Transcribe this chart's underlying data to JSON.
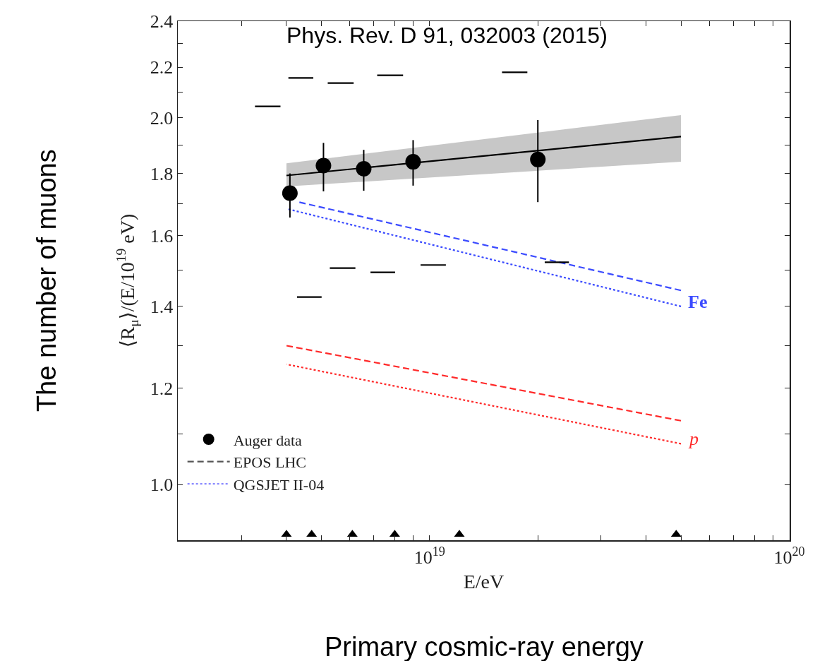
{
  "chart_data": {
    "type": "line",
    "xlabel": "E/eV",
    "ylabel": "⟨R$_{μ}$⟩/(E/10$^{19}$ eV)",
    "annotations": [
      "Phys. Rev. D 91, 032003 (2015)",
      "The number of muons",
      "Primary cosmic-ray energy",
      "Fe",
      "p"
    ],
    "log": "xy",
    "legend": "bottom left",
    "xlim": [
      2e+18,
      1e+20
    ],
    "xticks": [
      {
        "value": 3e+18,
        "label": null
      },
      {
        "value": 4e+18,
        "label": null
      },
      {
        "value": 5e+18,
        "label": null
      },
      {
        "value": 6e+18,
        "label": null
      },
      {
        "value": 7e+18,
        "label": null
      },
      {
        "value": 8e+18,
        "label": null
      },
      {
        "value": 9e+18,
        "label": null
      },
      {
        "value": 1e+19,
        "label": "10$^{19}$"
      },
      {
        "value": 2e+19,
        "label": null
      },
      {
        "value": 3e+19,
        "label": null
      },
      {
        "value": 4e+19,
        "label": null
      },
      {
        "value": 5e+19,
        "label": null
      },
      {
        "value": 6e+19,
        "label": null
      },
      {
        "value": 7e+19,
        "label": null
      },
      {
        "value": 8e+19,
        "label": null
      },
      {
        "value": 9e+19,
        "label": null
      },
      {
        "value": 1e+20,
        "label": "10$^{20}$"
      }
    ],
    "ylim": [
      0.9,
      2.4
    ],
    "yticks": [
      {
        "value": 1,
        "label": "1.0"
      },
      {
        "value": 1.1,
        "label": null
      },
      {
        "value": 1.2,
        "label": "1.2"
      },
      {
        "value": 1.3,
        "label": null
      },
      {
        "value": 1.4,
        "label": "1.4"
      },
      {
        "value": 1.5,
        "label": null
      },
      {
        "value": 1.6,
        "label": "1.6"
      },
      {
        "value": 1.7,
        "label": null
      },
      {
        "value": 1.8,
        "label": "1.8"
      },
      {
        "value": 1.9,
        "label": null
      },
      {
        "value": 2,
        "label": "2.0"
      },
      {
        "value": 2.1,
        "label": null
      },
      {
        "value": 2.2,
        "label": "2.2"
      },
      {
        "value": 2.3,
        "label": null
      },
      {
        "value": 2.4,
        "label": "2.4"
      }
    ],
    "series": [
      {
        "color": "#000000",
        "x": [
          4e+18,
          5e+19
        ],
        "values": [
          1.793,
          1.93
        ],
        "lower": [
          1.756,
          1.84
        ],
        "upper": [
          1.835,
          2.01
        ]
      },
      {
        "color": "#3b4bff",
        "line_style": "dashed",
        "x": [
          4.3e+18,
          5e+19
        ],
        "values": [
          1.706,
          1.443
        ]
      },
      {
        "color": "#3b4bff",
        "line_style": "dotted",
        "x": [
          4e+18,
          5e+19
        ],
        "values": [
          1.684,
          1.4
        ]
      },
      {
        "color": "#ff2a2a",
        "line_style": "dashed",
        "x": [
          4e+18,
          5e+19
        ],
        "values": [
          1.3,
          1.128
        ]
      },
      {
        "color": "#ff2a2a",
        "line_style": "dotted",
        "x": [
          4e+18,
          5e+19
        ],
        "values": [
          1.255,
          1.08
        ]
      },
      {
        "color": "#000000",
        "x": [
          3.27e+18,
          3.85e+18,
          null,
          4.05e+18,
          4.75e+18,
          null,
          5.21e+18,
          6.15e+18,
          null,
          7.15e+18,
          8.44e+18,
          null,
          1.59e+19,
          1.87e+19,
          null,
          4.28e+18,
          5.01e+18,
          null,
          5.28e+18,
          6.22e+18,
          null,
          6.85e+18,
          8.02e+18,
          null,
          9.44e+18,
          1.11e+19,
          null,
          2.09e+19,
          2.44e+19
        ],
        "values": [
          2.043,
          2.043,
          null,
          2.156,
          2.156,
          null,
          2.135,
          2.135,
          null,
          2.167,
          2.167,
          null,
          2.179,
          2.179,
          null,
          1.425,
          1.425,
          null,
          1.505,
          1.505,
          null,
          1.493,
          1.493,
          null,
          1.514,
          1.514,
          null,
          1.522,
          1.522
        ]
      },
      {
        "type": "scatter",
        "color": "#000000",
        "marker": "triangle",
        "x": [
          4e+18,
          4.7e+18,
          6.1e+18,
          8e+18,
          1.21e+19,
          4.85e+19
        ],
        "values": [
          0.91,
          0.91,
          0.91,
          0.91,
          0.91,
          0.91
        ]
      },
      {
        "type": "scatter",
        "name": "Auger data",
        "color": "#000000",
        "marker": "circle",
        "x": [
          4.09e+18,
          5.07e+18,
          6.56e+18,
          9e+18,
          2e+19
        ],
        "values": [
          1.734,
          1.827,
          1.816,
          1.84,
          1.848
        ],
        "errors": [
          [
            1.656,
            1.8
          ],
          [
            1.74,
            1.907
          ],
          [
            1.742,
            1.882
          ],
          [
            1.759,
            1.917
          ],
          [
            1.705,
            1.991
          ]
        ]
      },
      {
        "name": "EPOS LHC",
        "color": "#555555",
        "line_style": "dashed",
        "values": [
          null
        ]
      },
      {
        "name": "QGSJET II-04",
        "color": "#8a8aff",
        "line_style": "dotted",
        "values": [
          null
        ]
      }
    ]
  }
}
